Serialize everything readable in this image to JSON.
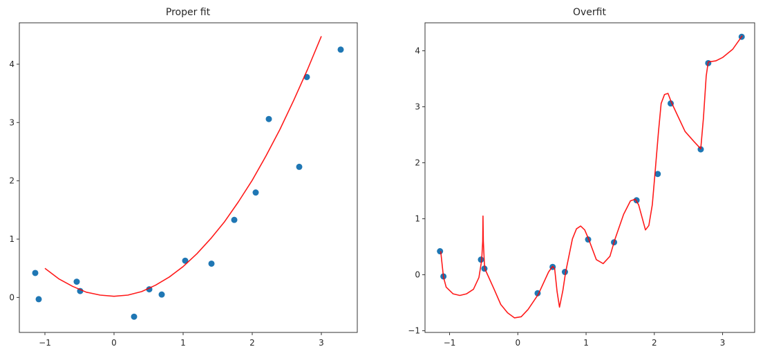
{
  "chart_data": [
    {
      "type": "scatter",
      "title": "Proper fit",
      "xlim": [
        -1.37,
        3.52
      ],
      "ylim": [
        -0.6,
        4.71
      ],
      "xticks": [
        -1,
        0,
        1,
        2,
        3
      ],
      "yticks": [
        0,
        1,
        2,
        3,
        4
      ],
      "grid": false,
      "points": {
        "color": "#1f77b4",
        "x": [
          -1.14,
          -1.09,
          -0.54,
          -0.49,
          0.29,
          0.51,
          0.69,
          1.03,
          1.41,
          1.74,
          2.05,
          2.24,
          2.68,
          2.79,
          3.28
        ],
        "y": [
          0.42,
          -0.03,
          0.27,
          0.11,
          -0.33,
          0.14,
          0.05,
          0.63,
          0.58,
          1.33,
          1.8,
          3.06,
          2.24,
          3.78,
          4.25
        ]
      },
      "line": {
        "color": "#ff0000",
        "x": [
          -1.0,
          -0.8,
          -0.6,
          -0.4,
          -0.2,
          0.0,
          0.2,
          0.4,
          0.6,
          0.8,
          1.0,
          1.2,
          1.4,
          1.6,
          1.8,
          2.0,
          2.2,
          2.4,
          2.6,
          2.8,
          3.0
        ],
        "y": [
          0.5,
          0.32,
          0.19,
          0.09,
          0.04,
          0.02,
          0.04,
          0.1,
          0.21,
          0.35,
          0.53,
          0.75,
          1.01,
          1.3,
          1.64,
          2.01,
          2.43,
          2.88,
          3.38,
          3.91,
          4.48
        ]
      }
    },
    {
      "type": "scatter",
      "title": "Overfit",
      "xlim": [
        -1.36,
        3.47
      ],
      "ylim": [
        -1.03,
        4.5
      ],
      "xticks": [
        -1,
        0,
        1,
        2,
        3
      ],
      "yticks": [
        -1,
        0,
        1,
        2,
        3,
        4
      ],
      "grid": false,
      "points": {
        "color": "#1f77b4",
        "x": [
          -1.14,
          -1.09,
          -0.54,
          -0.49,
          0.29,
          0.51,
          0.69,
          1.03,
          1.41,
          1.74,
          2.05,
          2.24,
          2.68,
          2.79,
          3.28
        ],
        "y": [
          0.42,
          -0.03,
          0.27,
          0.11,
          -0.33,
          0.14,
          0.05,
          0.63,
          0.58,
          1.33,
          1.8,
          3.06,
          2.24,
          3.78,
          4.25
        ]
      },
      "line": {
        "color": "#ff0000",
        "x": [
          -1.13,
          -1.09,
          -1.05,
          -0.95,
          -0.85,
          -0.75,
          -0.65,
          -0.57,
          -0.53,
          -0.515,
          -0.51,
          -0.505,
          -0.49,
          -0.48,
          -0.35,
          -0.25,
          -0.15,
          -0.05,
          0.05,
          0.15,
          0.3,
          0.45,
          0.51,
          0.54,
          0.575,
          0.61,
          0.66,
          0.7,
          0.8,
          0.86,
          0.92,
          0.98,
          1.04,
          1.15,
          1.25,
          1.35,
          1.42,
          1.55,
          1.65,
          1.72,
          1.77,
          1.87,
          1.92,
          1.97,
          2.01,
          2.06,
          2.1,
          2.15,
          2.2,
          2.25,
          2.35,
          2.45,
          2.58,
          2.68,
          2.72,
          2.76,
          2.79,
          2.9,
          3.0,
          3.15,
          3.29
        ],
        "y": [
          0.42,
          -0.04,
          -0.22,
          -0.34,
          -0.37,
          -0.34,
          -0.26,
          -0.05,
          0.26,
          0.6,
          1.05,
          0.6,
          0.2,
          0.1,
          -0.25,
          -0.53,
          -0.68,
          -0.77,
          -0.75,
          -0.62,
          -0.35,
          0.05,
          0.15,
          0.11,
          -0.3,
          -0.58,
          -0.28,
          0.04,
          0.64,
          0.82,
          0.87,
          0.8,
          0.63,
          0.27,
          0.2,
          0.33,
          0.62,
          1.08,
          1.32,
          1.35,
          1.25,
          0.8,
          0.88,
          1.25,
          1.81,
          2.55,
          3.06,
          3.22,
          3.24,
          3.08,
          2.82,
          2.56,
          2.38,
          2.25,
          2.8,
          3.55,
          3.8,
          3.82,
          3.88,
          4.03,
          4.27
        ]
      }
    }
  ]
}
